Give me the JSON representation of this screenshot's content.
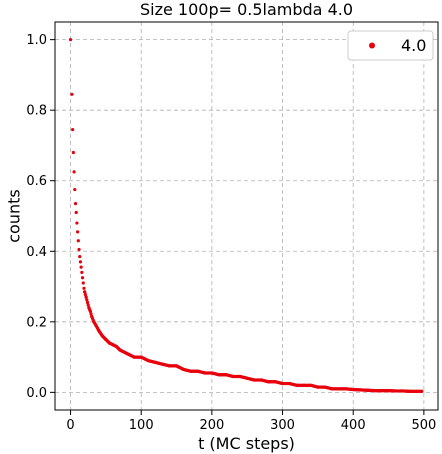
{
  "chart_data": {
    "type": "scatter",
    "title": "Size 100p= 0.5lambda 4.0",
    "xlabel": "t (MC steps)",
    "ylabel": "counts",
    "xlim": [
      -22,
      520
    ],
    "ylim": [
      -0.05,
      1.05
    ],
    "xticks": [
      0,
      100,
      200,
      300,
      400,
      500
    ],
    "yticks": [
      0.0,
      0.2,
      0.4,
      0.6,
      0.8,
      1.0
    ],
    "xtick_labels": [
      "0",
      "100",
      "200",
      "300",
      "400",
      "500"
    ],
    "ytick_labels": [
      "0.0",
      "0.2",
      "0.4",
      "0.6",
      "0.8",
      "1.0"
    ],
    "grid": true,
    "legend_position": "top-right",
    "colors": {
      "series": "#e8000b",
      "grid": "#b0b0b0"
    },
    "series": [
      {
        "name": "4.0",
        "x": [
          0,
          2,
          3,
          4,
          5,
          6,
          7,
          8,
          9,
          10,
          11,
          12,
          13,
          14,
          15,
          16,
          17,
          18,
          19,
          20,
          22,
          24,
          26,
          28,
          30,
          33,
          36,
          40,
          45,
          50,
          55,
          60,
          65,
          70,
          80,
          90,
          100,
          110,
          120,
          130,
          140,
          150,
          160,
          170,
          180,
          190,
          200,
          210,
          220,
          230,
          240,
          250,
          260,
          270,
          280,
          290,
          300,
          310,
          320,
          330,
          340,
          350,
          360,
          370,
          380,
          390,
          400,
          410,
          420,
          430,
          440,
          450,
          460,
          470,
          480,
          490,
          497
        ],
        "y": [
          1.0,
          0.845,
          0.745,
          0.68,
          0.625,
          0.575,
          0.535,
          0.51,
          0.48,
          0.455,
          0.43,
          0.405,
          0.385,
          0.37,
          0.355,
          0.34,
          0.325,
          0.31,
          0.295,
          0.285,
          0.27,
          0.255,
          0.24,
          0.23,
          0.215,
          0.2,
          0.19,
          0.175,
          0.16,
          0.15,
          0.14,
          0.135,
          0.13,
          0.12,
          0.11,
          0.1,
          0.1,
          0.09,
          0.085,
          0.08,
          0.075,
          0.075,
          0.065,
          0.06,
          0.06,
          0.055,
          0.055,
          0.05,
          0.05,
          0.045,
          0.045,
          0.04,
          0.035,
          0.035,
          0.03,
          0.03,
          0.025,
          0.025,
          0.02,
          0.02,
          0.02,
          0.015,
          0.015,
          0.01,
          0.01,
          0.01,
          0.008,
          0.007,
          0.006,
          0.005,
          0.005,
          0.005,
          0.004,
          0.004,
          0.003,
          0.003,
          0.003
        ]
      }
    ]
  }
}
